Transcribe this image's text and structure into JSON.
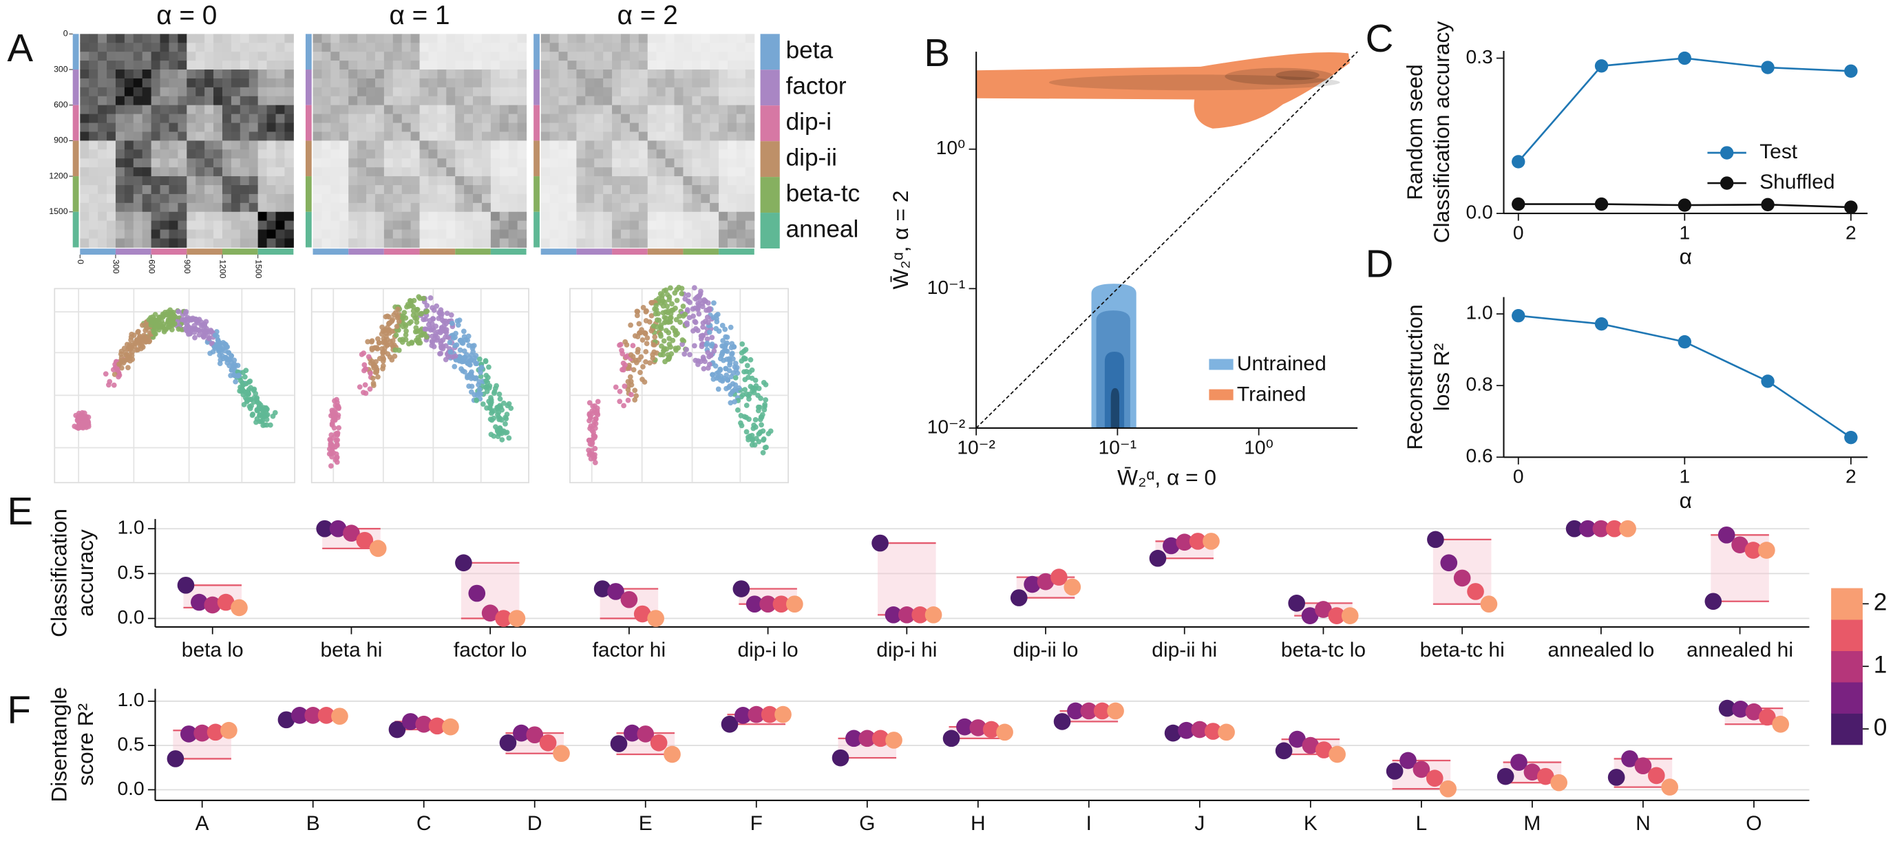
{
  "panel_labels": [
    "A",
    "B",
    "C",
    "D",
    "E",
    "F"
  ],
  "chart_data": [
    {
      "type": "heatmap",
      "titles": [
        "α = 0",
        "α = 1",
        "α = 2"
      ],
      "lim": [
        0,
        1800
      ],
      "ticks": [
        0,
        300,
        600,
        900,
        1200,
        1500
      ],
      "groups": [
        {
          "name": "beta",
          "color": "#77a7d4"
        },
        {
          "name": "factor",
          "color": "#a986c4"
        },
        {
          "name": "dip-i",
          "color": "#d678a4"
        },
        {
          "name": "dip-ii",
          "color": "#be9068"
        },
        {
          "name": "beta-tc",
          "color": "#86b060"
        },
        {
          "name": "anneal",
          "color": "#5fb895"
        }
      ]
    },
    {
      "type": "contour",
      "xlabel": "W̄₂ᵅ, α = 0",
      "ylabel": "W̄₂ᵅ, α = 2",
      "log": true,
      "xlim": [
        0.01,
        5
      ],
      "ylim": [
        0.01,
        5
      ],
      "xticks": [
        {
          "value": 0.01,
          "label": "10⁻²"
        },
        {
          "value": 0.1,
          "label": "10⁻¹"
        },
        {
          "value": 1,
          "label": "10⁰"
        }
      ],
      "yticks": [
        {
          "value": 0.01,
          "label": "10⁻²"
        },
        {
          "value": 0.1,
          "label": "10⁻¹"
        },
        {
          "value": 1,
          "label": "10⁰"
        }
      ],
      "series": [
        {
          "name": "Untrained",
          "color": "#7fb3e0"
        },
        {
          "name": "Trained",
          "color": "#f29160"
        }
      ],
      "legend": "lower right"
    },
    {
      "type": "line",
      "ylabel": [
        "Random seed",
        "Classification accuracy"
      ],
      "xlabel": "α",
      "x": [
        0,
        0.5,
        1,
        1.5,
        2
      ],
      "xlim": [
        -0.088,
        2.1
      ],
      "ylim": [
        0,
        0.314
      ],
      "xticks": [
        0,
        1,
        2
      ],
      "yticks": [
        {
          "value": 0,
          "label": "0.0"
        },
        0.3
      ],
      "series": [
        {
          "name": "Test",
          "color": "#1f77b4",
          "values": [
            0.1,
            0.285,
            0.3,
            0.282,
            0.275
          ]
        },
        {
          "name": "Shuffled",
          "color": "#111111",
          "values": [
            0.018,
            0.018,
            0.016,
            0.017,
            0.012
          ]
        }
      ],
      "legend": "center right"
    },
    {
      "type": "line",
      "ylabel": [
        "Reconstruction",
        "loss R²"
      ],
      "xlabel": "α",
      "x": [
        0,
        0.5,
        1,
        1.5,
        2
      ],
      "xlim": [
        -0.088,
        2.1
      ],
      "ylim": [
        0.6,
        1.047
      ],
      "xticks": [
        0,
        1,
        2
      ],
      "yticks": [
        0.6,
        0.8,
        {
          "value": 1,
          "label": "1.0"
        }
      ],
      "series": [
        {
          "color": "#1f77b4",
          "values": [
            0.995,
            0.972,
            0.922,
            0.812,
            0.655
          ]
        }
      ]
    },
    {
      "type": "dot",
      "ylabel": [
        "Classification",
        "accuracy"
      ],
      "ylim": [
        -0.095,
        1.108
      ],
      "yticks": [
        {
          "value": 0,
          "label": "0.0"
        },
        0.5,
        {
          "value": 1,
          "label": "1.0"
        }
      ],
      "grid": true,
      "categories": [
        "beta lo",
        "beta hi",
        "factor lo",
        "factor hi",
        "dip-i lo",
        "dip-i hi",
        "dip-ii lo",
        "dip-ii hi",
        "beta-tc lo",
        "beta-tc hi",
        "annealed lo",
        "annealed hi"
      ],
      "series": [
        {
          "color": "#4b1c6b",
          "values": [
            0.37,
            1.0,
            0.62,
            0.33,
            0.33,
            0.84,
            0.23,
            0.67,
            0.17,
            0.88,
            1.0,
            0.19
          ]
        },
        {
          "color": "#7a2281",
          "values": [
            0.18,
            1.0,
            0.28,
            0.3,
            0.16,
            0.04,
            0.38,
            0.81,
            0.03,
            0.62,
            1.0,
            0.93
          ]
        },
        {
          "color": "#b5367a",
          "values": [
            0.15,
            0.95,
            0.06,
            0.21,
            0.16,
            0.04,
            0.41,
            0.85,
            0.1,
            0.45,
            1.0,
            0.82
          ]
        },
        {
          "color": "#e85968",
          "values": [
            0.18,
            0.87,
            0.0,
            0.05,
            0.16,
            0.04,
            0.46,
            0.86,
            0.03,
            0.3,
            1.0,
            0.76
          ]
        },
        {
          "color": "#f89e73",
          "values": [
            0.12,
            0.78,
            0.0,
            0.0,
            0.16,
            0.04,
            0.35,
            0.86,
            0.03,
            0.16,
            1.0,
            0.76
          ]
        }
      ],
      "colorbar": {
        "lim": [
          0,
          2
        ],
        "ticks": [
          0,
          1,
          2
        ]
      }
    },
    {
      "type": "dot",
      "ylabel": [
        "Disentangle",
        "score R²"
      ],
      "ylim": [
        -0.12,
        1.14
      ],
      "yticks": [
        {
          "value": 0,
          "label": "0.0"
        },
        0.5,
        {
          "value": 1,
          "label": "1.0"
        }
      ],
      "grid": true,
      "categories": [
        "A",
        "B",
        "C",
        "D",
        "E",
        "F",
        "G",
        "H",
        "I",
        "J",
        "K",
        "L",
        "M",
        "N",
        "O"
      ],
      "series": [
        {
          "color": "#4b1c6b",
          "values": [
            0.35,
            0.79,
            0.68,
            0.53,
            0.52,
            0.74,
            0.36,
            0.58,
            0.77,
            0.64,
            0.44,
            0.21,
            0.15,
            0.14,
            0.92
          ]
        },
        {
          "color": "#7a2281",
          "values": [
            0.63,
            0.84,
            0.77,
            0.64,
            0.64,
            0.84,
            0.58,
            0.71,
            0.89,
            0.67,
            0.57,
            0.33,
            0.31,
            0.35,
            0.91
          ]
        },
        {
          "color": "#b5367a",
          "values": [
            0.64,
            0.84,
            0.74,
            0.62,
            0.63,
            0.85,
            0.58,
            0.7,
            0.89,
            0.68,
            0.5,
            0.23,
            0.2,
            0.27,
            0.88
          ]
        },
        {
          "color": "#e85968",
          "values": [
            0.65,
            0.84,
            0.72,
            0.53,
            0.53,
            0.85,
            0.58,
            0.68,
            0.89,
            0.66,
            0.45,
            0.13,
            0.15,
            0.16,
            0.82
          ]
        },
        {
          "color": "#f89e73",
          "values": [
            0.67,
            0.83,
            0.71,
            0.41,
            0.4,
            0.85,
            0.56,
            0.65,
            0.89,
            0.65,
            0.4,
            0.01,
            0.08,
            0.03,
            0.74
          ]
        }
      ]
    }
  ]
}
